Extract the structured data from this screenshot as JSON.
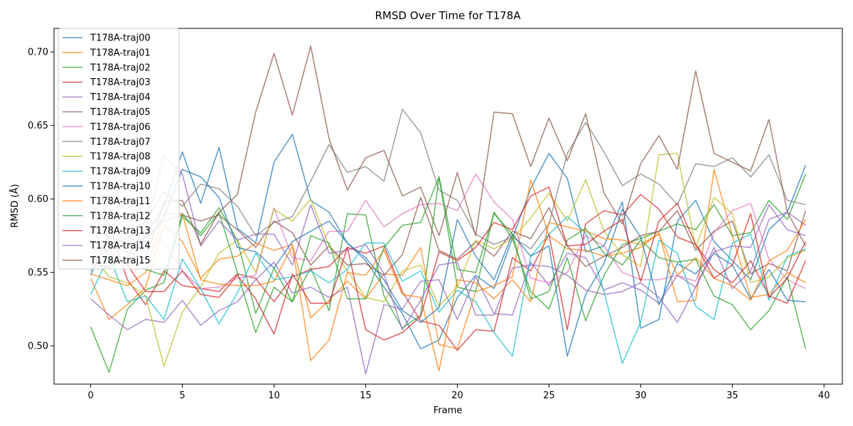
{
  "chart_data": {
    "type": "line",
    "title": "RMSD Over Time for T178A",
    "xlabel": "Frame",
    "ylabel": "RMSD (Å)",
    "xlim": [
      -2,
      41
    ],
    "ylim": [
      0.474,
      0.716
    ],
    "xticks": [
      0,
      5,
      10,
      15,
      20,
      25,
      30,
      35,
      40
    ],
    "yticks": [
      0.5,
      0.55,
      0.6,
      0.65,
      0.7
    ],
    "ytick_labels": [
      "0.50",
      "0.55",
      "0.60",
      "0.65",
      "0.70"
    ],
    "grid": false,
    "legend_position": "upper-left",
    "line_alpha": 0.75,
    "x": [
      0,
      1,
      2,
      3,
      4,
      5,
      6,
      7,
      8,
      9,
      10,
      11,
      12,
      13,
      14,
      15,
      16,
      17,
      18,
      19,
      20,
      21,
      22,
      23,
      24,
      25,
      26,
      27,
      28,
      29,
      30,
      31,
      32,
      33,
      34,
      35,
      36,
      37,
      38,
      39
    ],
    "series": [
      {
        "name": "T178A-traj00",
        "color": "#1f77b4",
        "values": [
          0.583,
          0.56,
          0.555,
          0.575,
          0.595,
          0.632,
          0.597,
          0.635,
          0.58,
          0.57,
          0.625,
          0.644,
          0.599,
          0.591,
          0.57,
          0.558,
          0.54,
          0.522,
          0.498,
          0.504,
          0.533,
          0.548,
          0.539,
          0.573,
          0.607,
          0.631,
          0.614,
          0.564,
          0.568,
          0.598,
          0.512,
          0.518,
          0.585,
          0.599,
          0.571,
          0.558,
          0.545,
          0.579,
          0.591,
          0.623
        ]
      },
      {
        "name": "T178A-traj01",
        "color": "#ff7f0e",
        "values": [
          0.546,
          0.518,
          0.528,
          0.54,
          0.582,
          0.571,
          0.546,
          0.559,
          0.561,
          0.57,
          0.565,
          0.569,
          0.519,
          0.531,
          0.544,
          0.532,
          0.549,
          0.548,
          0.567,
          0.501,
          0.498,
          0.537,
          0.541,
          0.547,
          0.613,
          0.575,
          0.566,
          0.565,
          0.561,
          0.563,
          0.567,
          0.577,
          0.53,
          0.531,
          0.62,
          0.575,
          0.533,
          0.535,
          0.55,
          0.543
        ]
      },
      {
        "name": "T178A-traj02",
        "color": "#2ca02c",
        "values": [
          0.513,
          0.482,
          0.525,
          0.538,
          0.543,
          0.588,
          0.577,
          0.594,
          0.572,
          0.522,
          0.553,
          0.53,
          0.553,
          0.524,
          0.59,
          0.589,
          0.534,
          0.512,
          0.521,
          0.615,
          0.54,
          0.537,
          0.591,
          0.573,
          0.537,
          0.525,
          0.56,
          0.517,
          0.548,
          0.569,
          0.573,
          0.578,
          0.583,
          0.579,
          0.596,
          0.575,
          0.577,
          0.599,
          0.586,
          0.617
        ]
      },
      {
        "name": "T178A-traj03",
        "color": "#d62728",
        "values": [
          0.596,
          0.583,
          0.545,
          0.528,
          0.551,
          0.541,
          0.539,
          0.537,
          0.549,
          0.546,
          0.53,
          0.547,
          0.552,
          0.554,
          0.567,
          0.563,
          0.568,
          0.537,
          0.517,
          0.514,
          0.497,
          0.511,
          0.51,
          0.56,
          0.551,
          0.576,
          0.511,
          0.583,
          0.592,
          0.589,
          0.603,
          0.593,
          0.574,
          0.569,
          0.552,
          0.543,
          0.558,
          0.534,
          0.529,
          0.558
        ]
      },
      {
        "name": "T178A-traj04",
        "color": "#9467bd",
        "values": [
          0.532,
          0.521,
          0.511,
          0.518,
          0.516,
          0.531,
          0.514,
          0.524,
          0.53,
          0.545,
          0.557,
          0.536,
          0.54,
          0.533,
          0.54,
          0.481,
          0.528,
          0.525,
          0.544,
          0.545,
          0.518,
          0.547,
          0.522,
          0.521,
          0.557,
          0.541,
          0.563,
          0.56,
          0.538,
          0.543,
          0.538,
          0.529,
          0.548,
          0.54,
          0.567,
          0.539,
          0.551,
          0.586,
          0.591,
          0.582
        ]
      },
      {
        "name": "T178A-traj05",
        "color": "#8c564b",
        "values": [
          0.582,
          0.574,
          0.568,
          0.574,
          0.585,
          0.589,
          0.585,
          0.589,
          0.579,
          0.567,
          0.585,
          0.577,
          0.555,
          0.568,
          0.555,
          0.556,
          0.548,
          0.562,
          0.601,
          0.565,
          0.559,
          0.571,
          0.561,
          0.578,
          0.573,
          0.594,
          0.568,
          0.554,
          0.561,
          0.567,
          0.575,
          0.578,
          0.592,
          0.565,
          0.578,
          0.585,
          0.549,
          0.556,
          0.551,
          0.592
        ]
      },
      {
        "name": "T178A-traj06",
        "color": "#e377c2",
        "values": [
          0.586,
          0.581,
          0.575,
          0.566,
          0.571,
          0.551,
          0.539,
          0.54,
          0.546,
          0.548,
          0.594,
          0.56,
          0.558,
          0.578,
          0.578,
          0.599,
          0.581,
          0.59,
          0.596,
          0.597,
          0.592,
          0.617,
          0.598,
          0.586,
          0.546,
          0.543,
          0.55,
          0.575,
          0.568,
          0.55,
          0.545,
          0.545,
          0.548,
          0.544,
          0.577,
          0.592,
          0.597,
          0.559,
          0.545,
          0.539
        ]
      },
      {
        "name": "T178A-traj07",
        "color": "#7f7f7f",
        "values": [
          0.551,
          0.569,
          0.573,
          0.585,
          0.605,
          0.595,
          0.61,
          0.607,
          0.595,
          0.575,
          0.584,
          0.588,
          0.612,
          0.637,
          0.618,
          0.622,
          0.612,
          0.661,
          0.645,
          0.606,
          0.599,
          0.576,
          0.569,
          0.574,
          0.566,
          0.583,
          0.631,
          0.652,
          0.632,
          0.609,
          0.617,
          0.61,
          0.596,
          0.624,
          0.622,
          0.628,
          0.615,
          0.63,
          0.599,
          0.596
        ]
      },
      {
        "name": "T178A-traj08",
        "color": "#bcbd22",
        "values": [
          0.563,
          0.547,
          0.543,
          0.534,
          0.486,
          0.523,
          0.54,
          0.563,
          0.572,
          0.55,
          0.593,
          0.585,
          0.6,
          0.568,
          0.551,
          0.533,
          0.53,
          0.551,
          0.555,
          0.527,
          0.54,
          0.572,
          0.566,
          0.573,
          0.587,
          0.604,
          0.585,
          0.613,
          0.578,
          0.562,
          0.554,
          0.63,
          0.631,
          0.567,
          0.601,
          0.59,
          0.543,
          0.547,
          0.56,
          0.565
        ]
      },
      {
        "name": "T178A-traj09",
        "color": "#17becf",
        "values": [
          0.535,
          0.561,
          0.53,
          0.534,
          0.518,
          0.559,
          0.539,
          0.515,
          0.536,
          0.563,
          0.545,
          0.547,
          0.551,
          0.543,
          0.552,
          0.57,
          0.57,
          0.544,
          0.551,
          0.523,
          0.538,
          0.53,
          0.509,
          0.493,
          0.561,
          0.576,
          0.588,
          0.577,
          0.537,
          0.488,
          0.516,
          0.572,
          0.563,
          0.527,
          0.518,
          0.57,
          0.576,
          0.531,
          0.561,
          0.566
        ]
      },
      {
        "name": "T178A-traj10",
        "color": "#1f77b4",
        "values": [
          0.548,
          0.575,
          0.57,
          0.571,
          0.588,
          0.62,
          0.615,
          0.601,
          0.567,
          0.564,
          0.553,
          0.571,
          0.578,
          0.585,
          0.57,
          0.56,
          0.545,
          0.524,
          0.516,
          0.526,
          0.586,
          0.561,
          0.545,
          0.576,
          0.561,
          0.568,
          0.493,
          0.535,
          0.556,
          0.593,
          0.574,
          0.528,
          0.556,
          0.549,
          0.563,
          0.555,
          0.532,
          0.552,
          0.531,
          0.53
        ]
      },
      {
        "name": "T178A-traj11",
        "color": "#ff7f0e",
        "values": [
          0.549,
          0.545,
          0.541,
          0.55,
          0.59,
          0.59,
          0.545,
          0.542,
          0.541,
          0.541,
          0.544,
          0.568,
          0.49,
          0.504,
          0.55,
          0.548,
          0.565,
          0.535,
          0.533,
          0.483,
          0.545,
          0.543,
          0.532,
          0.545,
          0.53,
          0.584,
          0.581,
          0.578,
          0.573,
          0.572,
          0.569,
          0.576,
          0.548,
          0.56,
          0.546,
          0.541,
          0.531,
          0.558,
          0.565,
          0.586
        ]
      },
      {
        "name": "T178A-traj12",
        "color": "#2ca02c",
        "values": [
          0.556,
          0.553,
          0.56,
          0.552,
          0.548,
          0.59,
          0.575,
          0.591,
          0.55,
          0.509,
          0.54,
          0.53,
          0.575,
          0.57,
          0.532,
          0.532,
          0.567,
          0.582,
          0.584,
          0.615,
          0.552,
          0.55,
          0.59,
          0.576,
          0.532,
          0.537,
          0.572,
          0.58,
          0.563,
          0.555,
          0.572,
          0.56,
          0.557,
          0.559,
          0.534,
          0.528,
          0.511,
          0.524,
          0.547,
          0.498
        ]
      },
      {
        "name": "T178A-traj13",
        "color": "#d62728",
        "values": [
          0.572,
          0.564,
          0.555,
          0.537,
          0.537,
          0.551,
          0.535,
          0.533,
          0.548,
          0.532,
          0.508,
          0.549,
          0.529,
          0.529,
          0.567,
          0.511,
          0.504,
          0.509,
          0.52,
          0.564,
          0.558,
          0.567,
          0.584,
          0.579,
          0.602,
          0.608,
          0.568,
          0.569,
          0.578,
          0.586,
          0.544,
          0.585,
          0.597,
          0.569,
          0.546,
          0.555,
          0.59,
          0.533,
          0.546,
          0.571
        ]
      },
      {
        "name": "T178A-traj14",
        "color": "#9467bd",
        "values": [
          0.555,
          0.554,
          0.561,
          0.58,
          0.63,
          0.617,
          0.568,
          0.585,
          0.572,
          0.576,
          0.576,
          0.555,
          0.596,
          0.563,
          0.565,
          0.569,
          0.549,
          0.511,
          0.531,
          0.555,
          0.557,
          0.521,
          0.521,
          0.553,
          0.555,
          0.554,
          0.548,
          0.538,
          0.535,
          0.537,
          0.543,
          0.533,
          0.516,
          0.54,
          0.564,
          0.568,
          0.567,
          0.596,
          0.579,
          0.575
        ]
      },
      {
        "name": "T178A-traj15",
        "color": "#8c564b",
        "values": [
          0.571,
          0.568,
          0.564,
          0.56,
          0.598,
          0.599,
          0.569,
          0.591,
          0.603,
          0.659,
          0.699,
          0.657,
          0.704,
          0.641,
          0.606,
          0.628,
          0.633,
          0.602,
          0.608,
          0.575,
          0.618,
          0.575,
          0.659,
          0.658,
          0.622,
          0.655,
          0.626,
          0.658,
          0.604,
          0.583,
          0.624,
          0.643,
          0.62,
          0.687,
          0.631,
          0.625,
          0.619,
          0.654,
          0.591,
          0.568
        ]
      }
    ]
  }
}
